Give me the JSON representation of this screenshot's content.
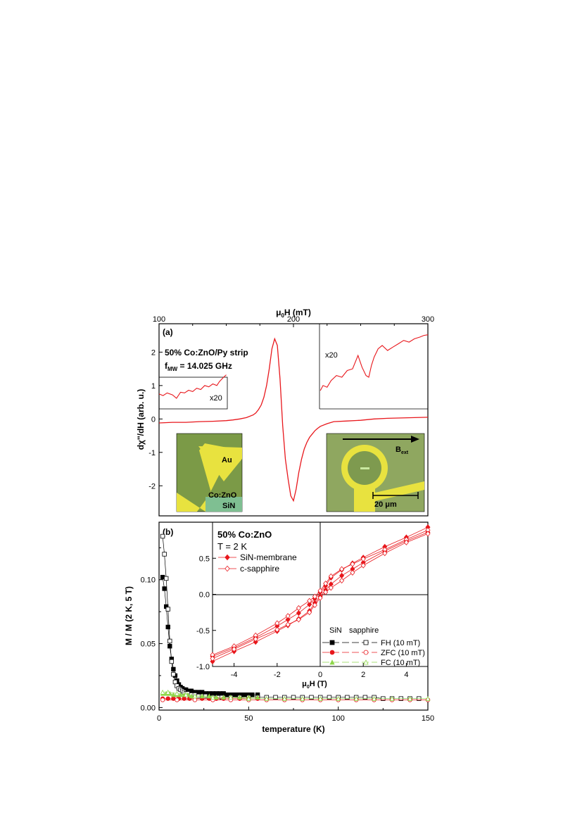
{
  "colors": {
    "red": "#e8171c",
    "black": "#000000",
    "green": "#8fd64b",
    "microscope_bg": "#7b9a47",
    "gold": "#e8e23f"
  },
  "chart_data": [
    {
      "id": "a",
      "type": "line",
      "panel_label": "(a)",
      "xlabel": "μ0H (mT)",
      "ylabel": "dχ''/dH (arb. u.)",
      "xlim": [
        100,
        300
      ],
      "ylim": [
        -2.9,
        2.85
      ],
      "x_ticks": [
        "100",
        "200",
        "300"
      ],
      "y_ticks": [
        "-2",
        "-1",
        "0",
        "1",
        "2"
      ],
      "annotation_line1": "50% Co:ZnO/Py strip",
      "annotation_line2": "f",
      "annotation_sub": "MW",
      "annotation_rest": " = 14.025 GHz",
      "zoom_left_label": "x20",
      "zoom_right_label": "x20",
      "inset_left": {
        "label_au": "Au",
        "label_coznO": "Co:ZnO",
        "label_sin": "SiN"
      },
      "inset_right": {
        "field_label": "B",
        "field_sub": "ext",
        "scalebar_label": "20 μm"
      },
      "series": [
        {
          "x": [
            100,
            110,
            120,
            130,
            140,
            150,
            155,
            160,
            165,
            170,
            172,
            174,
            176,
            178,
            180,
            182,
            184,
            186,
            188,
            190,
            192,
            194,
            196,
            198,
            200,
            202,
            204,
            206,
            208,
            210,
            212,
            214,
            216,
            218,
            220,
            225,
            230,
            240,
            250,
            260,
            270,
            280,
            290,
            300
          ],
          "y": [
            -0.12,
            -0.1,
            -0.1,
            -0.08,
            -0.07,
            -0.05,
            -0.03,
            0.0,
            0.04,
            0.12,
            0.18,
            0.28,
            0.42,
            0.65,
            1.0,
            1.5,
            2.1,
            2.4,
            2.2,
            1.2,
            -0.2,
            -1.2,
            -1.8,
            -2.3,
            -2.45,
            -2.1,
            -1.6,
            -1.2,
            -0.9,
            -0.7,
            -0.55,
            -0.45,
            -0.35,
            -0.28,
            -0.22,
            -0.14,
            -0.08,
            -0.06,
            -0.04,
            0.0,
            0.02,
            0.03,
            0.04,
            0.05
          ]
        }
      ],
      "zoom_left": {
        "x": [
          100,
          103,
          106,
          110,
          113,
          116,
          119,
          122,
          125,
          128,
          131,
          134,
          137,
          140,
          143,
          145,
          148,
          150
        ],
        "y": [
          0.75,
          0.7,
          0.78,
          0.72,
          0.62,
          0.8,
          0.78,
          0.86,
          0.82,
          0.92,
          0.88,
          1.0,
          0.96,
          1.05,
          1.0,
          1.12,
          1.25,
          1.32
        ]
      },
      "zoom_right": {
        "x": [
          220,
          222,
          225,
          228,
          232,
          236,
          240,
          244,
          248,
          251,
          254,
          256,
          258,
          260,
          263,
          266,
          270,
          274,
          278,
          282,
          286,
          290,
          294,
          297,
          300
        ],
        "y": [
          0.85,
          1.0,
          0.95,
          1.15,
          1.3,
          1.25,
          1.45,
          1.5,
          1.9,
          1.55,
          1.3,
          1.25,
          1.6,
          1.85,
          2.1,
          2.2,
          2.05,
          2.15,
          2.25,
          2.35,
          2.3,
          2.4,
          2.45,
          2.5,
          2.52
        ]
      }
    },
    {
      "id": "b",
      "type": "line",
      "panel_label": "(b)",
      "xlabel": "temperature (K)",
      "ylabel": "M / M (2 K, 5 T)",
      "xlim": [
        0,
        150
      ],
      "ylim": [
        -0.002,
        0.145
      ],
      "x_ticks": [
        "0",
        "50",
        "100",
        "150"
      ],
      "y_ticks": [
        "0.00",
        "0.05",
        "0.10"
      ],
      "series": [
        {
          "name": "FH (10 mT)",
          "substrate": "SiN",
          "marker": "square-filled",
          "color": "#000000",
          "x": [
            2,
            3,
            4,
            5,
            6,
            7,
            8,
            9,
            10,
            11,
            12,
            13,
            14,
            15,
            16,
            17,
            18,
            19,
            20,
            22,
            24,
            26,
            28,
            30,
            32,
            34,
            36,
            38,
            40,
            42,
            44,
            46,
            48,
            50,
            52,
            55
          ],
          "y": [
            0.102,
            0.093,
            0.079,
            0.063,
            0.048,
            0.038,
            0.03,
            0.025,
            0.021,
            0.018,
            0.016,
            0.015,
            0.014,
            0.014,
            0.013,
            0.013,
            0.013,
            0.012,
            0.012,
            0.012,
            0.012,
            0.011,
            0.011,
            0.011,
            0.011,
            0.011,
            0.011,
            0.01,
            0.01,
            0.01,
            0.01,
            0.01,
            0.01,
            0.01,
            0.01,
            0.01
          ]
        },
        {
          "name": "FH (10 mT)",
          "substrate": "sapphire",
          "marker": "square-open",
          "color": "#000000",
          "x": [
            2,
            3,
            4,
            5,
            6,
            7,
            8,
            9,
            10,
            11,
            12,
            13,
            14,
            15,
            16,
            18,
            20,
            22,
            24,
            26,
            28,
            30,
            35,
            40,
            45,
            50,
            55,
            60,
            65,
            70,
            75,
            80,
            85,
            90,
            95,
            100,
            105,
            110,
            115,
            120,
            125,
            130,
            135,
            140,
            145
          ],
          "y": [
            0.134,
            0.12,
            0.101,
            0.077,
            0.052,
            0.036,
            0.026,
            0.02,
            0.017,
            0.015,
            0.014,
            0.013,
            0.012,
            0.011,
            0.011,
            0.01,
            0.01,
            0.009,
            0.009,
            0.009,
            0.008,
            0.008,
            0.008,
            0.008,
            0.008,
            0.008,
            0.008,
            0.008,
            0.008,
            0.008,
            0.008,
            0.008,
            0.008,
            0.008,
            0.008,
            0.008,
            0.008,
            0.008,
            0.008,
            0.008,
            0.007,
            0.007,
            0.007,
            0.007,
            0.007
          ]
        },
        {
          "name": "ZFC (10 mT)",
          "substrate": "SiN",
          "marker": "circle-filled",
          "color": "#e8171c",
          "x": [
            2,
            5,
            8,
            11,
            14,
            17,
            20,
            24,
            28,
            32,
            36,
            40,
            45,
            50,
            55
          ],
          "y": [
            0.007,
            0.007,
            0.007,
            0.007,
            0.007,
            0.007,
            0.007,
            0.007,
            0.007,
            0.007,
            0.007,
            0.007,
            0.007,
            0.007,
            0.007
          ]
        },
        {
          "name": "ZFC (10 mT)",
          "substrate": "sapphire",
          "marker": "circle-open",
          "color": "#e8171c",
          "x": [
            2,
            10,
            20,
            30,
            40,
            50,
            60,
            70,
            80,
            90,
            100,
            110,
            120,
            130,
            140,
            150
          ],
          "y": [
            0.006,
            0.006,
            0.006,
            0.006,
            0.006,
            0.006,
            0.006,
            0.006,
            0.006,
            0.006,
            0.006,
            0.006,
            0.006,
            0.006,
            0.006,
            0.006
          ]
        },
        {
          "name": "FC (10 mT)",
          "substrate": "SiN",
          "marker": "triangle-filled",
          "color": "#8fd64b",
          "x": [
            2,
            4,
            6,
            8,
            10,
            12,
            14,
            16,
            18,
            20,
            24,
            28,
            32,
            36,
            40,
            45,
            50,
            55
          ],
          "y": [
            0.011,
            0.011,
            0.011,
            0.01,
            0.01,
            0.01,
            0.01,
            0.01,
            0.009,
            0.009,
            0.009,
            0.009,
            0.008,
            0.008,
            0.008,
            0.008,
            0.008,
            0.008
          ]
        },
        {
          "name": "FC (10 mT)",
          "substrate": "sapphire",
          "marker": "triangle-open",
          "color": "#8fd64b",
          "x": [
            2,
            5,
            10,
            15,
            20,
            30,
            40,
            50,
            60,
            70,
            80,
            90,
            100,
            110,
            120,
            130,
            140,
            150
          ],
          "y": [
            0.012,
            0.012,
            0.011,
            0.01,
            0.009,
            0.008,
            0.008,
            0.007,
            0.007,
            0.007,
            0.007,
            0.007,
            0.007,
            0.007,
            0.007,
            0.007,
            0.007,
            0.007
          ]
        }
      ],
      "legend_header_sin": "SiN",
      "legend_header_sapphire": "sapphire",
      "legend_labels": [
        "FH (10 mT)",
        "ZFC (10 mT)",
        "FC (10 mT)"
      ]
    },
    {
      "id": "b-inset",
      "type": "line",
      "xlabel": "μ0H (T)",
      "xlim": [
        -5,
        5
      ],
      "ylim": [
        -1.0,
        1.0
      ],
      "x_ticks": [
        "-4",
        "-2",
        "0",
        "2",
        "4"
      ],
      "y_ticks": [
        "-1.0",
        "-0.5",
        "0.0",
        "0.5"
      ],
      "title_line1": "50% Co:ZnO",
      "title_line2": "T = 2 K",
      "series": [
        {
          "name": "SiN-membrane",
          "marker": "diamond-filled",
          "color": "#e8171c",
          "x": [
            -5,
            -4,
            -3,
            -2,
            -1.5,
            -1,
            -0.5,
            -0.25,
            0,
            0.25,
            0.5,
            1,
            1.5,
            2,
            3,
            4,
            5
          ],
          "upper": [
            -0.86,
            -0.74,
            -0.6,
            -0.44,
            -0.35,
            -0.26,
            -0.14,
            -0.06,
            0.03,
            0.12,
            0.23,
            0.34,
            0.43,
            0.51,
            0.66,
            0.79,
            0.93
          ],
          "lower": [
            -0.93,
            -0.79,
            -0.66,
            -0.51,
            -0.43,
            -0.34,
            -0.23,
            -0.12,
            -0.03,
            0.06,
            0.14,
            0.26,
            0.35,
            0.44,
            0.6,
            0.74,
            0.86
          ]
        },
        {
          "name": "c-sapphire",
          "marker": "diamond-open",
          "color": "#e8171c",
          "x": [
            -5,
            -4,
            -3,
            -2,
            -1.5,
            -1,
            -0.5,
            -0.25,
            0,
            0.25,
            0.5,
            1,
            1.5,
            2,
            3,
            4,
            5
          ],
          "upper": [
            -0.84,
            -0.72,
            -0.57,
            -0.4,
            -0.3,
            -0.19,
            -0.09,
            -0.03,
            0.05,
            0.15,
            0.25,
            0.35,
            0.42,
            0.49,
            0.62,
            0.76,
            0.89
          ],
          "lower": [
            -0.89,
            -0.76,
            -0.62,
            -0.49,
            -0.42,
            -0.35,
            -0.25,
            -0.15,
            -0.05,
            0.03,
            0.09,
            0.19,
            0.3,
            0.4,
            0.57,
            0.72,
            0.84
          ]
        }
      ]
    }
  ]
}
